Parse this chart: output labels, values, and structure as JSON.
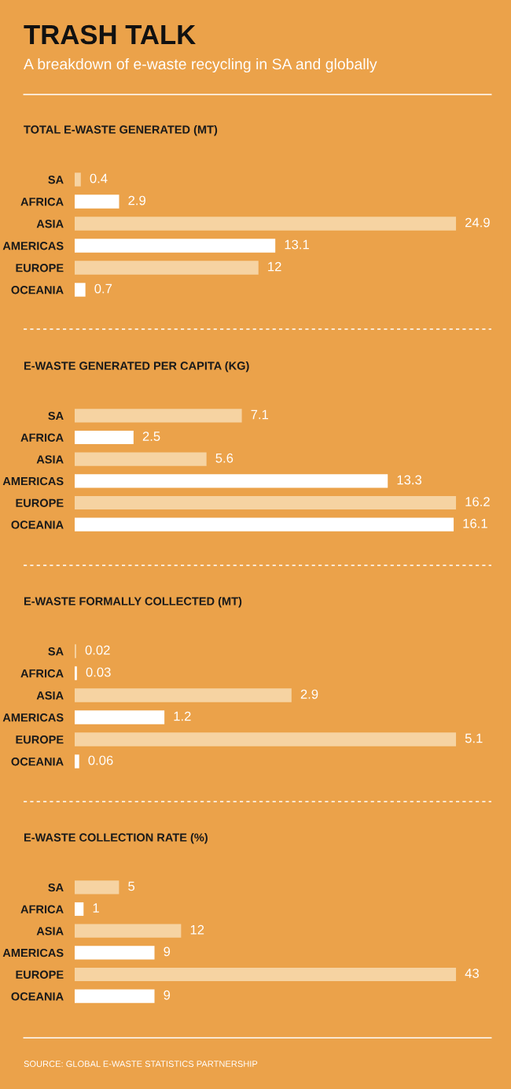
{
  "chart_data": [
    {
      "type": "bar",
      "orientation": "horizontal",
      "title": "TOTAL E-WASTE GENERATED (MT)",
      "annotations": [
        "TRASH TALK",
        "A breakdown of e-waste recycling in SA and globally"
      ],
      "categories": [
        "SA",
        "AFRICA",
        "ASIA",
        "AMERICAS",
        "EUROPE",
        "OCEANIA"
      ],
      "values": [
        0.4,
        2.9,
        24.9,
        13.1,
        12,
        0.7
      ],
      "colors": [
        "#f6d3a2",
        "#ffffff",
        "#f6d3a2",
        "#ffffff",
        "#f6d3a2",
        "#ffffff"
      ],
      "data_labels": true
    },
    {
      "type": "bar",
      "orientation": "horizontal",
      "title": "E-WASTE GENERATED PER CAPITA (KG)",
      "categories": [
        "SA",
        "AFRICA",
        "ASIA",
        "AMERICAS",
        "EUROPE",
        "OCEANIA"
      ],
      "values": [
        7.1,
        2.5,
        5.6,
        13.3,
        16.2,
        16.1
      ],
      "colors": [
        "#f6d3a2",
        "#ffffff",
        "#f6d3a2",
        "#ffffff",
        "#f6d3a2",
        "#ffffff"
      ],
      "data_labels": true
    },
    {
      "type": "bar",
      "orientation": "horizontal",
      "title": "E-WASTE FORMALLY COLLECTED (MT)",
      "categories": [
        "SA",
        "AFRICA",
        "ASIA",
        "AMERICAS",
        "EUROPE",
        "OCEANIA"
      ],
      "values": [
        0.02,
        0.03,
        2.9,
        1.2,
        5.1,
        0.06
      ],
      "colors": [
        "#f6d3a2",
        "#ffffff",
        "#f6d3a2",
        "#ffffff",
        "#f6d3a2",
        "#ffffff"
      ],
      "data_labels": true
    },
    {
      "type": "bar",
      "orientation": "horizontal",
      "title": "E-WASTE COLLECTION RATE (%)",
      "annotations": [
        "SOURCE: GLOBAL E-WASTE STATISTICS PARTNERSHIP"
      ],
      "categories": [
        "SA",
        "AFRICA",
        "ASIA",
        "AMERICAS",
        "EUROPE",
        "OCEANIA"
      ],
      "values": [
        5,
        1,
        12,
        9,
        43,
        9
      ],
      "colors": [
        "#f6d3a2",
        "#ffffff",
        "#f6d3a2",
        "#ffffff",
        "#f6d3a2",
        "#ffffff"
      ],
      "data_labels": true
    }
  ]
}
